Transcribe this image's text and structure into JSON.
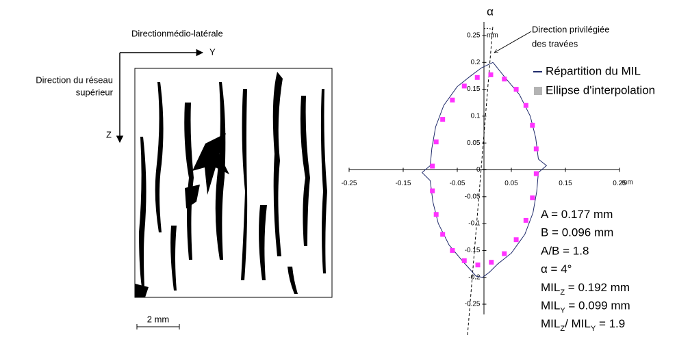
{
  "chart_data": {
    "type": "scatter",
    "x_unit": "mm",
    "y_unit": "mm",
    "angle_label": "α",
    "xlim": [
      -0.25,
      0.25
    ],
    "ylim": [
      -0.25,
      0.25
    ],
    "xticks": [
      -0.25,
      -0.15,
      -0.05,
      0.05,
      0.15,
      0.25
    ],
    "yticks": [
      0.25,
      0.2,
      0.15,
      0.1,
      0.05,
      0,
      -0.05,
      -0.1,
      -0.15,
      -0.2,
      -0.25
    ],
    "series": [
      {
        "name": "Répartition du MIL",
        "type": "line",
        "color": "#1f2a6b",
        "x": [
          0.016,
          0.04,
          0.065,
          0.085,
          0.095,
          0.1,
          0.115,
          0.1,
          0.097,
          0.09,
          0.075,
          0.05,
          0.025,
          0.01,
          -0.003,
          -0.015,
          -0.04,
          -0.065,
          -0.085,
          -0.095,
          -0.1,
          -0.115,
          -0.1,
          -0.097,
          -0.09,
          -0.075,
          -0.05,
          -0.025,
          -0.005,
          0.016
        ],
        "values": [
          0.2,
          0.17,
          0.14,
          0.1,
          0.06,
          0.02,
          0.008,
          -0.005,
          -0.04,
          -0.08,
          -0.12,
          -0.155,
          -0.175,
          -0.19,
          -0.2,
          -0.198,
          -0.17,
          -0.14,
          -0.1,
          -0.06,
          -0.02,
          -0.005,
          0.008,
          0.04,
          0.08,
          0.12,
          0.155,
          0.175,
          0.19,
          0.2
        ]
      },
      {
        "name": "Ellipse d'interpolation",
        "type": "scatter",
        "color": "#ff33ff",
        "legend_color": "#b3b3b3",
        "x": [
          0.096,
          0.096,
          0.089,
          0.077,
          0.059,
          0.037,
          0.012,
          -0.013,
          -0.037,
          -0.059,
          -0.077,
          -0.089,
          -0.096,
          -0.096,
          -0.089,
          -0.077,
          -0.059,
          -0.037,
          -0.012,
          0.013,
          0.037,
          0.059,
          0.077,
          0.089
        ],
        "values": [
          -0.007,
          0.039,
          0.083,
          0.12,
          0.15,
          0.169,
          0.177,
          0.172,
          0.156,
          0.13,
          0.094,
          0.052,
          0.007,
          -0.039,
          -0.083,
          -0.12,
          -0.15,
          -0.169,
          -0.177,
          -0.172,
          -0.156,
          -0.13,
          -0.094,
          -0.052
        ]
      }
    ],
    "annotation": [
      "Direction privilégiée",
      "des travées"
    ],
    "stats": [
      [
        "A = 0.177 mm"
      ],
      [
        "B = 0.096 mm"
      ],
      [
        "A/B = 1.8"
      ],
      [
        "α = 4°"
      ],
      [
        "MIL",
        "Z",
        " = 0.192 mm"
      ],
      [
        "MIL",
        "Y",
        " = 0.099 mm"
      ],
      [
        "MIL",
        "Z",
        "/ MIL",
        "Y",
        " = 1.9"
      ]
    ]
  },
  "image_panel": {
    "horizontal_label": "Directionmédio-latérale",
    "horizontal_axis": "Y",
    "vertical_label": [
      "Direction du réseau",
      "supérieur"
    ],
    "vertical_axis": "Z",
    "scale_bar": "2 mm"
  }
}
